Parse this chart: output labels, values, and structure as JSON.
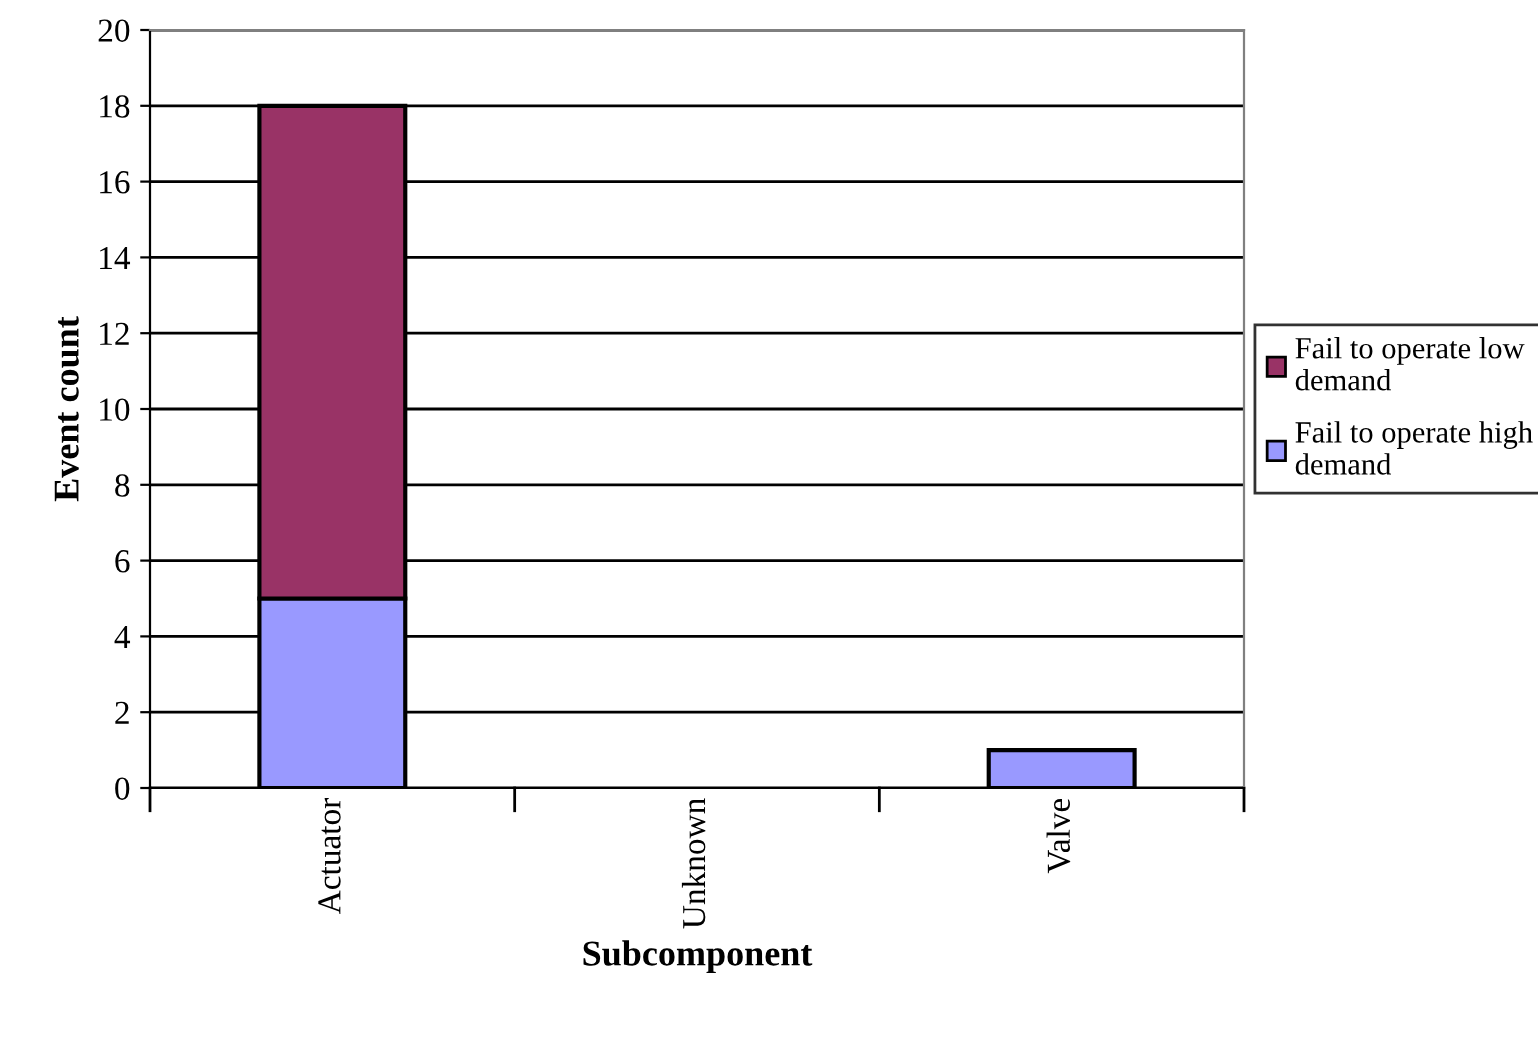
{
  "chart_data": {
    "type": "bar",
    "stacked": true,
    "xlabel": "Subcomponent",
    "ylabel": "Event count",
    "categories": [
      "Actuator",
      "Unknown",
      "Valve"
    ],
    "series": [
      {
        "name": "Fail to operate high demand",
        "color": "#9999ff",
        "values": [
          5,
          0,
          1
        ]
      },
      {
        "name": "Fail to operate low demand",
        "color": "#993366",
        "values": [
          13,
          0,
          0
        ]
      }
    ],
    "ylim": [
      0,
      20
    ],
    "yticks": [
      0,
      2,
      4,
      6,
      8,
      10,
      12,
      14,
      16,
      18,
      20
    ],
    "grid": "y",
    "legend": "right"
  }
}
